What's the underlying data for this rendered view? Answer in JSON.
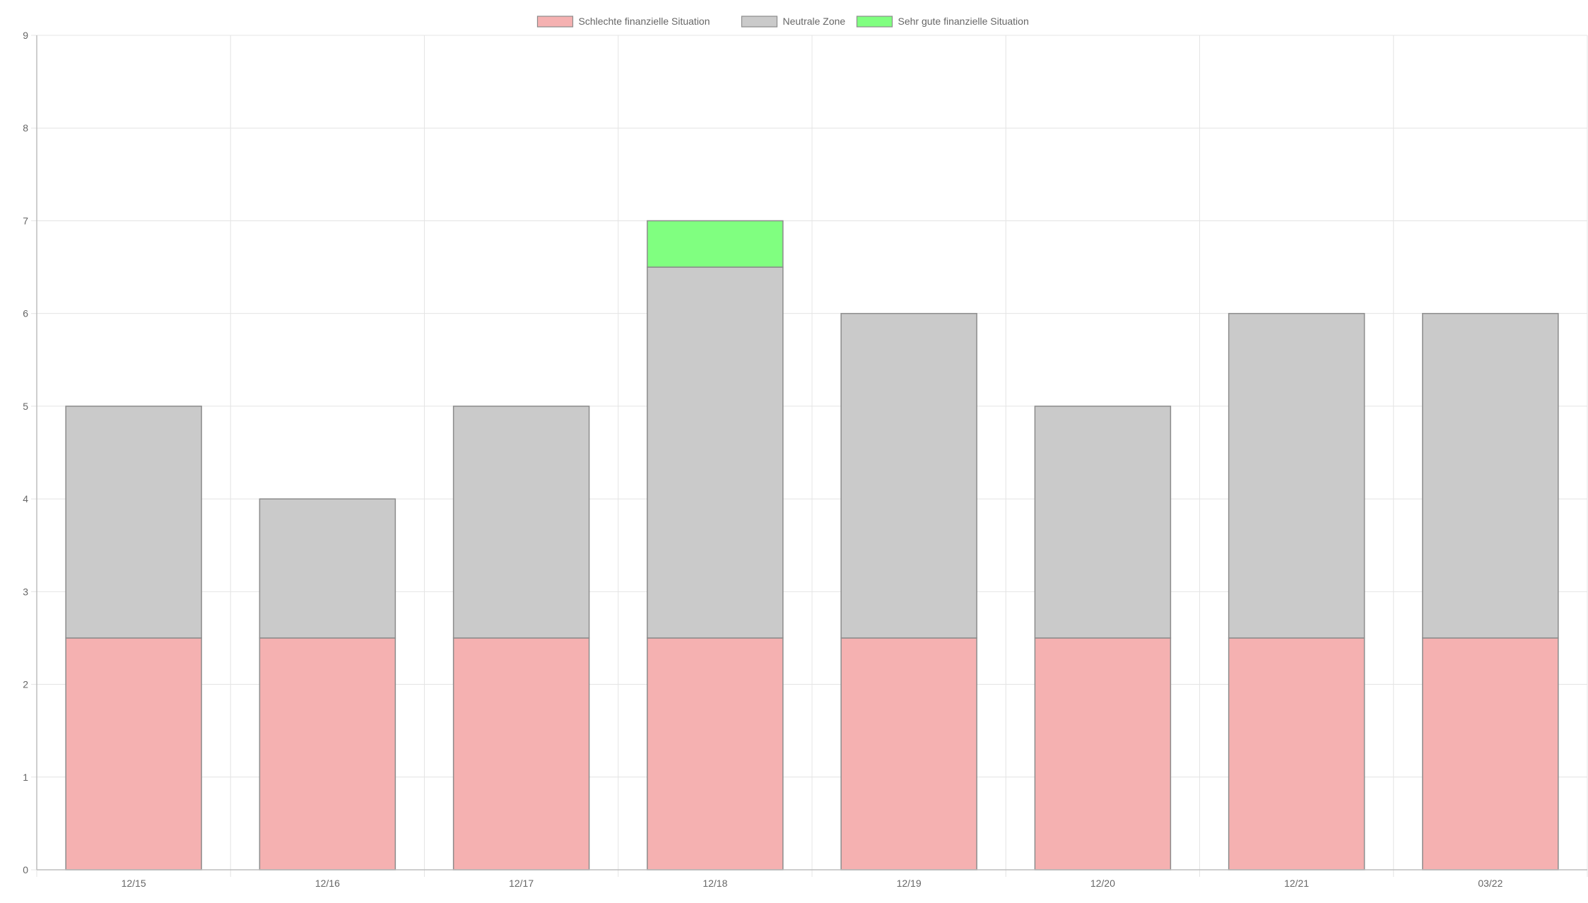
{
  "chart_data": {
    "type": "bar",
    "stacked": true,
    "categories": [
      "12/15",
      "12/16",
      "12/17",
      "12/18",
      "12/19",
      "12/20",
      "12/21",
      "03/22"
    ],
    "series": [
      {
        "name": "Schlechte finanzielle Situation",
        "values": [
          2.5,
          2.5,
          2.5,
          2.5,
          2.5,
          2.5,
          2.5,
          2.5
        ],
        "color": "#f5b1b1"
      },
      {
        "name": "Neutrale Zone",
        "values": [
          2.5,
          1.5,
          2.5,
          4,
          3.5,
          2.5,
          3.5,
          3.5
        ],
        "color": "#cacaca"
      },
      {
        "name": "Sehr gute finanzielle Situation",
        "values": [
          0,
          0,
          0,
          0.5,
          0,
          0,
          0,
          0
        ],
        "color": "#80ff80"
      }
    ],
    "yticks": [
      "0",
      "1",
      "2",
      "3",
      "4",
      "5",
      "6",
      "7",
      "8",
      "9"
    ],
    "ylim": [
      0,
      9
    ],
    "grid": true,
    "legend": "top-center",
    "border_color": "#8c8c8c",
    "grid_color": "#e4e4e4"
  }
}
